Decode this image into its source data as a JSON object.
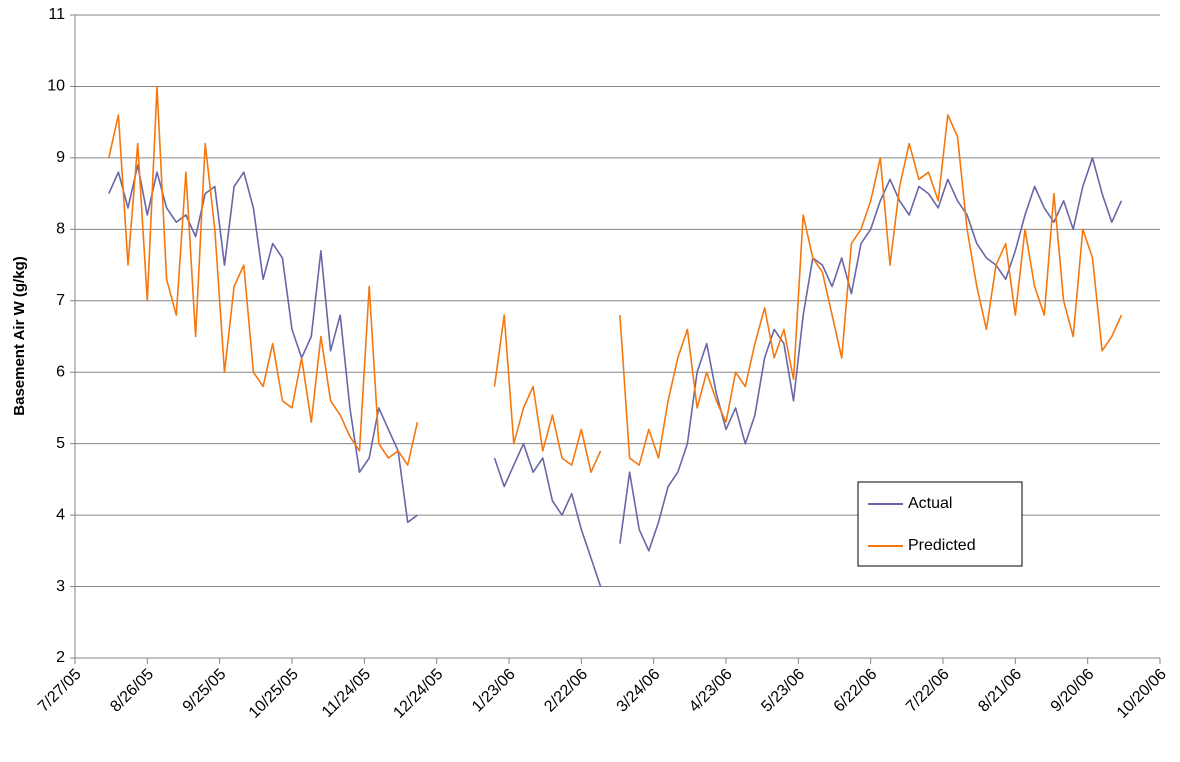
{
  "chart_data": {
    "type": "line",
    "y_label": "Basement Air W (g/kg)",
    "x": [
      "8/10/05",
      "8/14/05",
      "8/18/05",
      "8/22/05",
      "8/26/05",
      "8/30/05",
      "9/3/05",
      "9/7/05",
      "9/11/05",
      "9/15/05",
      "9/19/05",
      "9/23/05",
      "9/27/05",
      "10/1/05",
      "10/5/05",
      "10/9/05",
      "10/13/05",
      "10/17/05",
      "10/21/05",
      "10/25/05",
      "10/29/05",
      "11/2/05",
      "11/6/05",
      "11/10/05",
      "11/14/05",
      "11/18/05",
      "11/22/05",
      "11/26/05",
      "11/30/05",
      "12/4/05",
      "12/8/05",
      "12/12/05",
      "12/16/05",
      "12/28/05",
      "1/17/06",
      "1/21/06",
      "1/25/06",
      "1/29/06",
      "2/2/06",
      "2/6/06",
      "2/10/06",
      "2/14/06",
      "2/18/06",
      "2/22/06",
      "2/26/06",
      "3/2/06",
      "3/6/06",
      "3/10/06",
      "3/14/06",
      "3/18/06",
      "3/22/06",
      "3/26/06",
      "3/30/06",
      "4/3/06",
      "4/7/06",
      "4/11/06",
      "4/15/06",
      "4/19/06",
      "4/23/06",
      "4/27/06",
      "5/1/06",
      "5/5/06",
      "5/9/06",
      "5/13/06",
      "5/17/06",
      "5/21/06",
      "5/25/06",
      "5/29/06",
      "6/2/06",
      "6/6/06",
      "6/10/06",
      "6/14/06",
      "6/18/06",
      "6/22/06",
      "6/26/06",
      "6/30/06",
      "7/4/06",
      "7/8/06",
      "7/12/06",
      "7/16/06",
      "7/20/06",
      "7/24/06",
      "7/28/06",
      "8/1/06",
      "8/5/06",
      "8/9/06",
      "8/13/06",
      "8/17/06",
      "8/21/06",
      "8/25/06",
      "8/29/06",
      "9/2/06",
      "9/6/06",
      "9/10/06",
      "9/14/06",
      "9/18/06",
      "9/22/06",
      "9/26/06",
      "9/30/06",
      "10/4/06"
    ],
    "series": [
      {
        "name": "Actual",
        "color": "#6767a8",
        "values": [
          8.5,
          8.8,
          8.3,
          8.9,
          8.2,
          8.8,
          8.3,
          8.1,
          8.2,
          7.9,
          8.5,
          8.6,
          7.5,
          8.6,
          8.8,
          8.3,
          7.3,
          7.8,
          7.6,
          6.6,
          6.2,
          6.5,
          7.7,
          6.3,
          6.8,
          5.5,
          4.6,
          4.8,
          5.5,
          5.2,
          4.9,
          3.9,
          4.0,
          null,
          4.8,
          4.4,
          4.7,
          5.0,
          4.6,
          4.8,
          4.2,
          4.0,
          4.3,
          3.8,
          3.4,
          3.0,
          null,
          3.6,
          4.6,
          3.8,
          3.5,
          3.9,
          4.4,
          4.6,
          5.0,
          6.0,
          6.4,
          5.7,
          5.2,
          5.5,
          5.0,
          5.4,
          6.2,
          6.6,
          6.4,
          5.6,
          6.8,
          7.6,
          7.5,
          7.2,
          7.6,
          7.1,
          7.8,
          8.0,
          8.4,
          8.7,
          8.4,
          8.2,
          8.6,
          8.5,
          8.3,
          8.7,
          8.4,
          8.2,
          7.8,
          7.6,
          7.5,
          7.3,
          7.7,
          8.2,
          8.6,
          8.3,
          8.1,
          8.4,
          8.0,
          8.6,
          9.0,
          8.5,
          8.1,
          8.4
        ]
      },
      {
        "name": "Predicted",
        "color": "#f5780f",
        "values": [
          9.0,
          9.6,
          7.5,
          9.2,
          7.0,
          10.0,
          7.3,
          6.8,
          8.8,
          6.5,
          9.2,
          8.0,
          6.0,
          7.2,
          7.5,
          6.0,
          5.8,
          6.4,
          5.6,
          5.5,
          6.2,
          5.3,
          6.5,
          5.6,
          5.4,
          5.1,
          4.9,
          7.2,
          5.0,
          4.8,
          4.9,
          4.7,
          5.3,
          null,
          5.8,
          6.8,
          5.0,
          5.5,
          5.8,
          4.9,
          5.4,
          4.8,
          4.7,
          5.2,
          4.6,
          4.9,
          null,
          6.8,
          4.8,
          4.7,
          5.2,
          4.8,
          5.6,
          6.2,
          6.6,
          5.5,
          6.0,
          5.6,
          5.3,
          6.0,
          5.8,
          6.4,
          6.9,
          6.2,
          6.6,
          5.9,
          8.2,
          7.6,
          7.4,
          6.8,
          6.2,
          7.8,
          8.0,
          8.4,
          9.0,
          7.5,
          8.6,
          9.2,
          8.7,
          8.8,
          8.4,
          9.6,
          9.3,
          8.0,
          7.2,
          6.6,
          7.5,
          7.8,
          6.8,
          8.0,
          7.2,
          6.8,
          8.5,
          7.0,
          6.5,
          8.0,
          7.6,
          6.3,
          6.5,
          6.8
        ]
      }
    ],
    "xlim": [
      "7/27/05",
      "10/20/06"
    ],
    "xticks": [
      "7/27/05",
      "8/26/05",
      "9/25/05",
      "10/25/05",
      "11/24/05",
      "12/24/05",
      "1/23/06",
      "2/22/06",
      "3/24/06",
      "4/23/06",
      "5/23/06",
      "6/22/06",
      "7/22/06",
      "8/21/06",
      "9/20/06",
      "10/20/06"
    ],
    "ylim": [
      2,
      11
    ],
    "yticks": [
      2,
      3,
      4,
      5,
      6,
      7,
      8,
      9,
      10,
      11
    ],
    "grid": true,
    "legend": "lower right"
  }
}
